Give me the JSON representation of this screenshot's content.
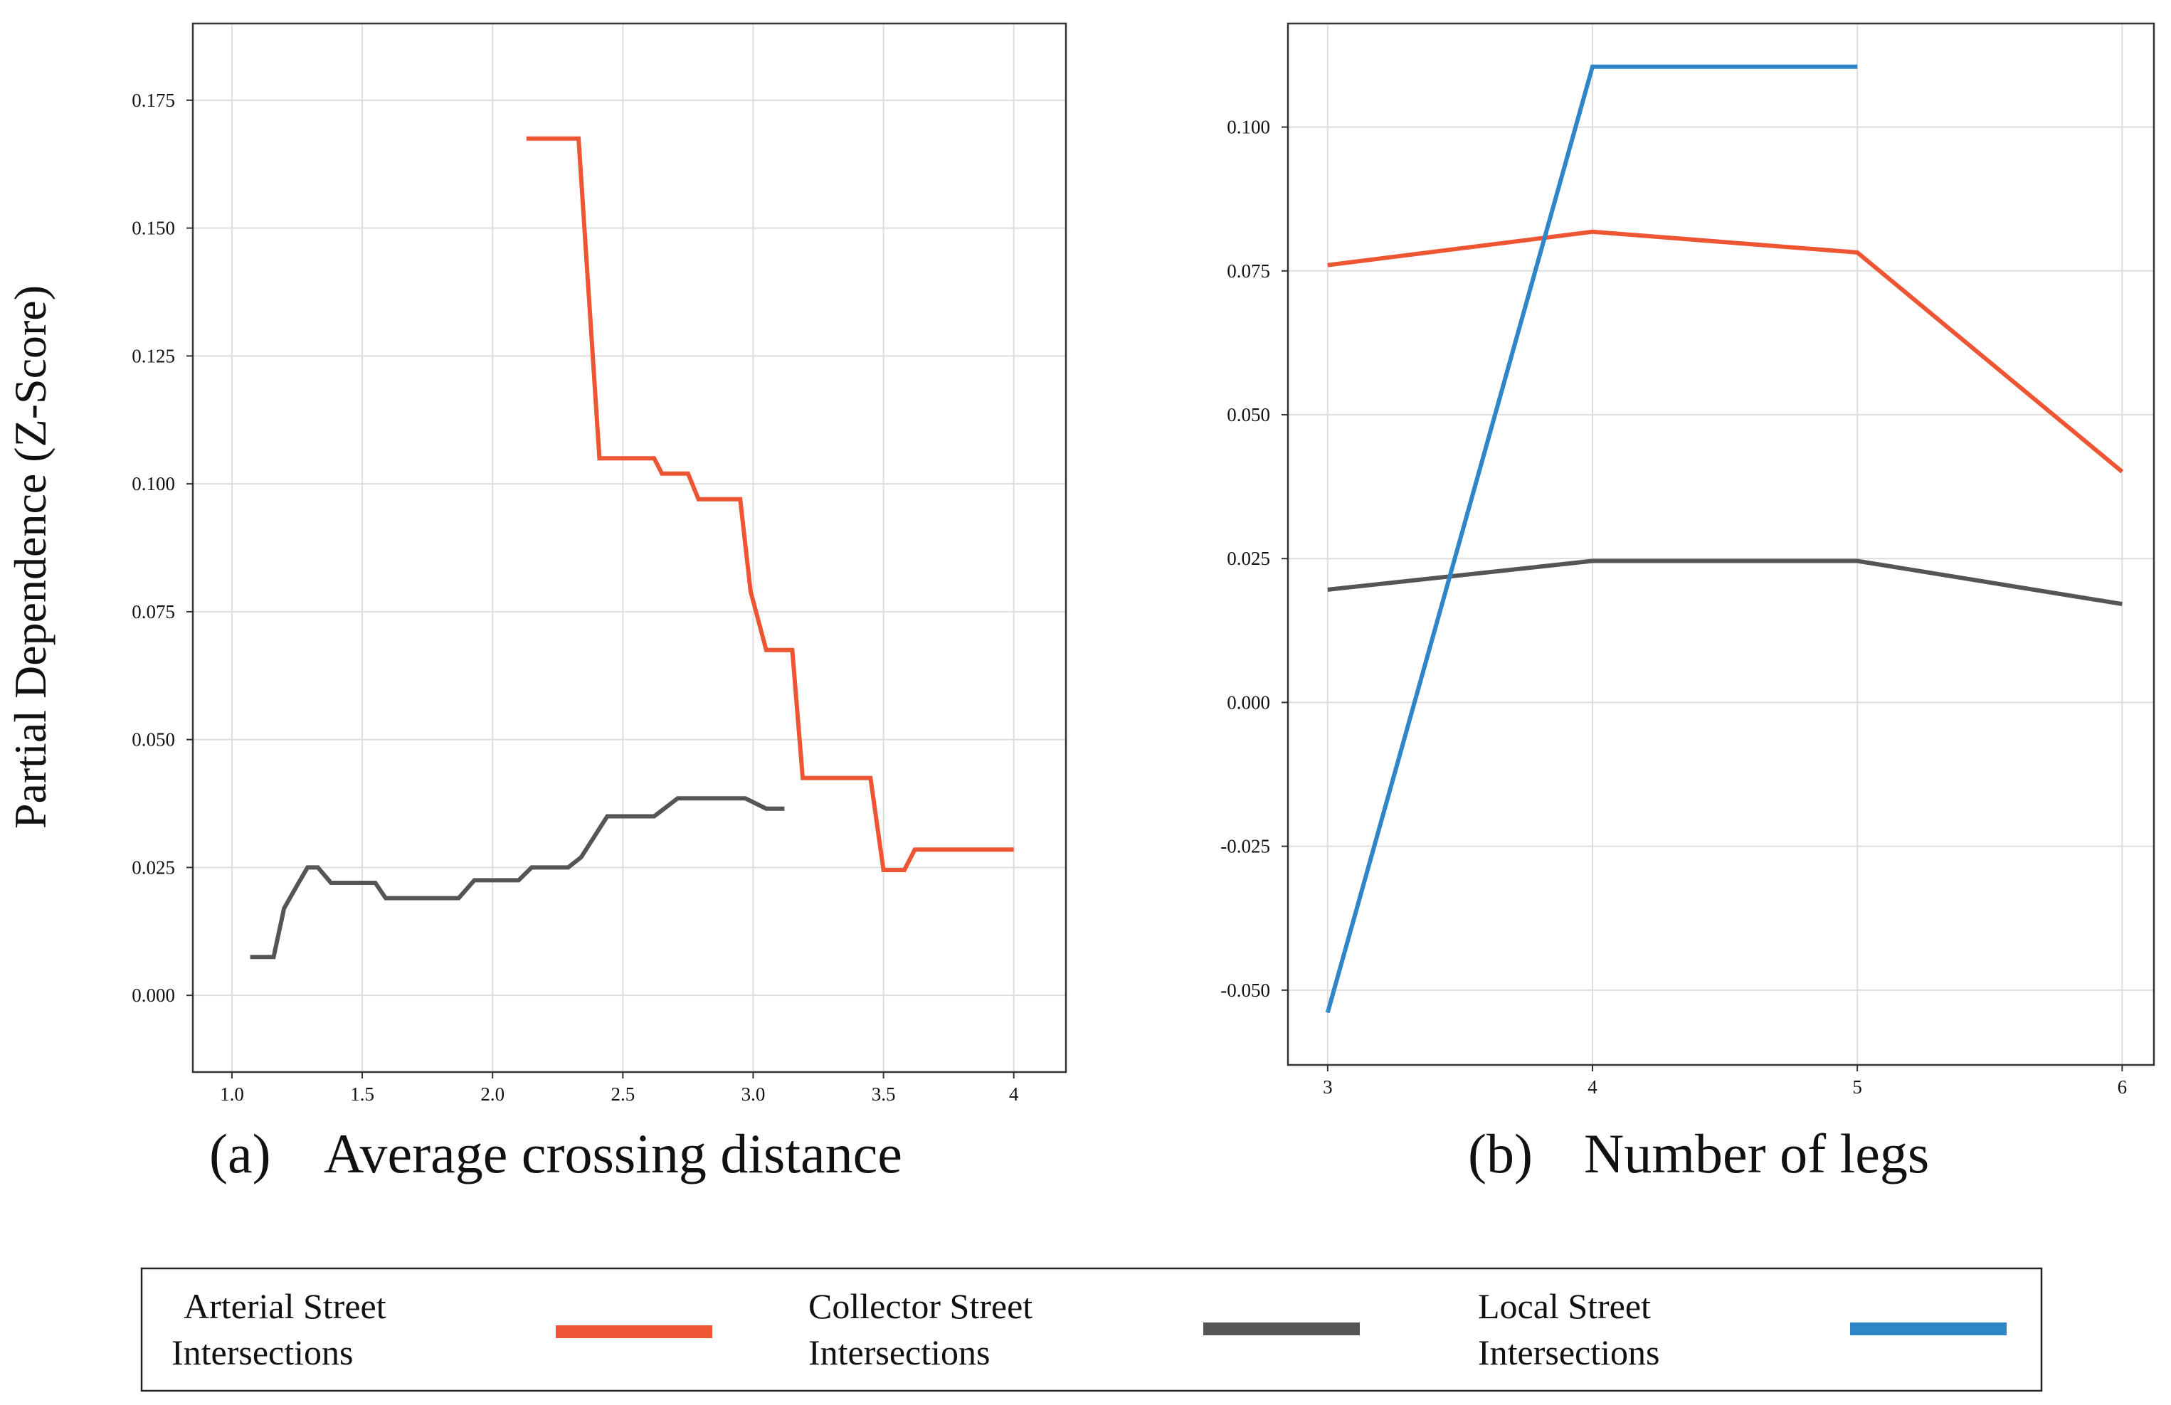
{
  "ylabel": "Partial Dependence (Z-Score)",
  "colors": {
    "arterial": "#EE5533",
    "collector": "#555555",
    "local": "#2E86C8"
  },
  "chart_data": [
    {
      "panel": "a",
      "type": "line",
      "caption_letter": "(a)",
      "xlabel": "Average crossing distance",
      "ylabel": "Partial Dependence (Z-Score)",
      "xlim": [
        0.85,
        4.2
      ],
      "ylim": [
        -0.015,
        0.19
      ],
      "xticks": [
        1.0,
        1.5,
        2.0,
        2.5,
        3.0,
        3.5,
        4.0
      ],
      "xtick_labels": [
        "1.0",
        "1.5",
        "2.0",
        "2.5",
        "3.0",
        "3.5",
        "4"
      ],
      "yticks": [
        0.0,
        0.025,
        0.05,
        0.075,
        0.1,
        0.125,
        0.15,
        0.175
      ],
      "ytick_labels": [
        "0.000",
        "0.025",
        "0.050",
        "0.075",
        "0.100",
        "0.125",
        "0.150",
        "0.175"
      ],
      "grid": true,
      "series": [
        {
          "name": "Arterial Street Intersections",
          "color_key": "arterial",
          "points": [
            [
              2.13,
              0.1675
            ],
            [
              2.33,
              0.1675
            ],
            [
              2.41,
              0.105
            ],
            [
              2.62,
              0.105
            ],
            [
              2.65,
              0.102
            ],
            [
              2.75,
              0.102
            ],
            [
              2.79,
              0.097
            ],
            [
              2.95,
              0.097
            ],
            [
              2.99,
              0.079
            ],
            [
              3.05,
              0.0675
            ],
            [
              3.15,
              0.0675
            ],
            [
              3.19,
              0.0425
            ],
            [
              3.45,
              0.0425
            ],
            [
              3.5,
              0.0245
            ],
            [
              3.58,
              0.0245
            ],
            [
              3.62,
              0.0285
            ],
            [
              4.0,
              0.0285
            ]
          ]
        },
        {
          "name": "Collector Street Intersections",
          "color_key": "collector",
          "points": [
            [
              1.07,
              0.0075
            ],
            [
              1.16,
              0.0075
            ],
            [
              1.2,
              0.017
            ],
            [
              1.25,
              0.0215
            ],
            [
              1.29,
              0.025
            ],
            [
              1.33,
              0.025
            ],
            [
              1.38,
              0.022
            ],
            [
              1.55,
              0.022
            ],
            [
              1.59,
              0.019
            ],
            [
              1.87,
              0.019
            ],
            [
              1.93,
              0.0225
            ],
            [
              2.1,
              0.0225
            ],
            [
              2.15,
              0.025
            ],
            [
              2.29,
              0.025
            ],
            [
              2.34,
              0.027
            ],
            [
              2.44,
              0.035
            ],
            [
              2.62,
              0.035
            ],
            [
              2.71,
              0.0385
            ],
            [
              2.97,
              0.0385
            ],
            [
              3.05,
              0.0365
            ],
            [
              3.12,
              0.0365
            ]
          ]
        }
      ]
    },
    {
      "panel": "b",
      "type": "line",
      "caption_letter": "(b)",
      "xlabel": "Number of legs",
      "xlim": [
        2.85,
        6.12
      ],
      "ylim": [
        -0.063,
        0.118
      ],
      "xticks": [
        3,
        4,
        5,
        6
      ],
      "xtick_labels": [
        "3",
        "4",
        "5",
        "6"
      ],
      "yticks": [
        -0.05,
        -0.025,
        0.0,
        0.025,
        0.05,
        0.075,
        0.1
      ],
      "ytick_labels": [
        "-0.050",
        "-0.025",
        "0.000",
        "0.025",
        "0.050",
        "0.075",
        "0.100"
      ],
      "grid": true,
      "series": [
        {
          "name": "Arterial Street Intersections",
          "color_key": "arterial",
          "x": [
            3,
            4,
            5,
            6
          ],
          "values": [
            0.076,
            0.0818,
            0.0782,
            0.0401
          ]
        },
        {
          "name": "Collector Street Intersections",
          "color_key": "collector",
          "x": [
            3,
            4,
            5,
            6
          ],
          "values": [
            0.0196,
            0.0246,
            0.0246,
            0.0171
          ]
        },
        {
          "name": "Local Street Intersections",
          "color_key": "local",
          "x": [
            3,
            4,
            5
          ],
          "values": [
            -0.0539,
            0.1105,
            0.1105
          ]
        }
      ]
    }
  ],
  "legend": {
    "items": [
      {
        "label_line1": "Arterial Street",
        "label_line2": "Intersections",
        "color_key": "arterial"
      },
      {
        "label_line1": "Collector Street",
        "label_line2": "Intersections",
        "color_key": "collector"
      },
      {
        "label_line1": "Local Street",
        "label_line2": "Intersections",
        "color_key": "local"
      }
    ]
  }
}
